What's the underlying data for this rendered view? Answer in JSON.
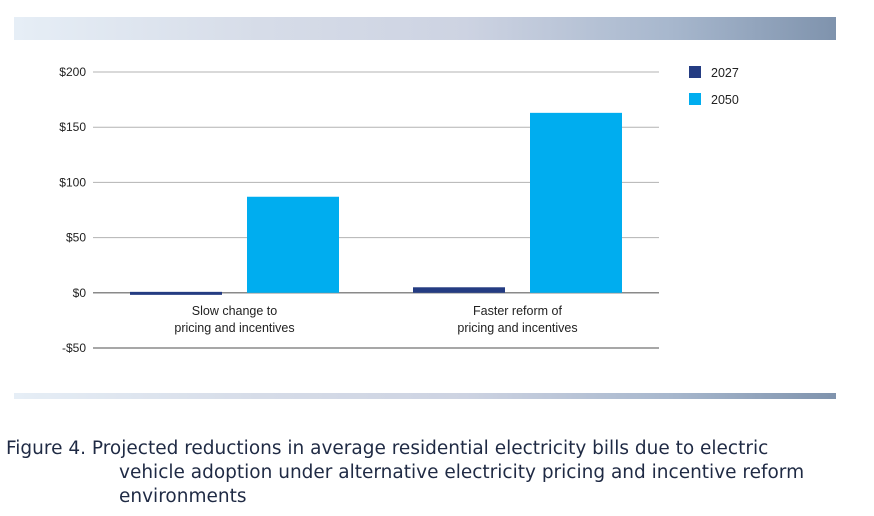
{
  "chart_data": {
    "type": "bar",
    "categories": [
      [
        "Slow change to",
        "pricing and incentives"
      ],
      [
        "Faster reform of",
        "pricing and incentives"
      ]
    ],
    "series": [
      {
        "name": "2027",
        "color": "#243c82",
        "values": [
          -1,
          5
        ]
      },
      {
        "name": "2050",
        "color": "#00adef",
        "values": [
          87,
          163
        ]
      }
    ],
    "yticks": [
      200,
      150,
      100,
      50,
      0,
      -50
    ],
    "ytick_labels": [
      "$200",
      "$150",
      "$100",
      "$50",
      "$0",
      "-$50"
    ],
    "ylim": [
      -50,
      200
    ],
    "grid": true,
    "legend_position": "top-right"
  },
  "caption": {
    "line1": "Figure 4. Projected reductions in average residential electricity bills due to electric",
    "line2": "vehicle adoption under alternative electricity pricing and incentive reform environments"
  }
}
